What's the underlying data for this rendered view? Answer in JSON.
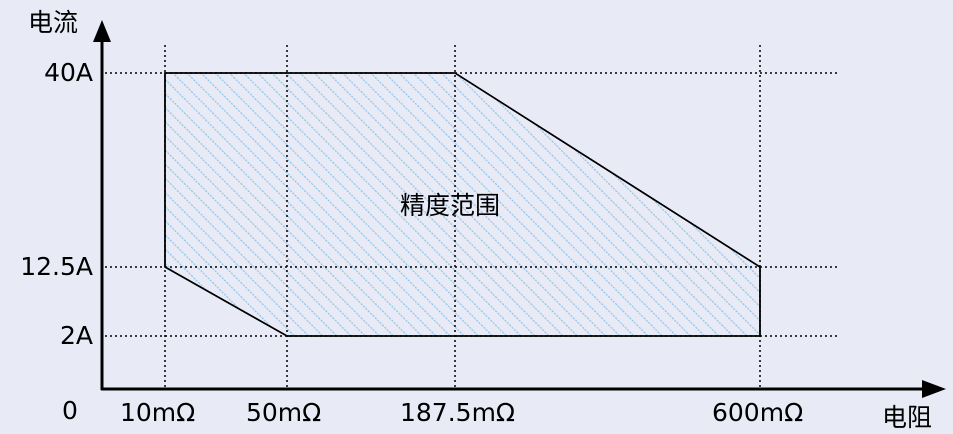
{
  "axes": {
    "y_label": "电流",
    "x_label": "电阻",
    "origin": "0",
    "y_ticks": [
      "40A",
      "12.5A",
      "2A"
    ],
    "x_ticks": [
      "10mΩ",
      "50mΩ",
      "187.5mΩ",
      "600mΩ"
    ]
  },
  "region": {
    "label": "精度范围",
    "hatch_color": "#8fc3e6",
    "outline_color": "#000000"
  },
  "chart_data": {
    "type": "area",
    "x_ticks": [
      "10mΩ",
      "50mΩ",
      "187.5mΩ",
      "600mΩ"
    ],
    "y_ticks": [
      "40A",
      "12.5A",
      "2A"
    ],
    "polygon": [
      {
        "x": "10mΩ",
        "y": "40A"
      },
      {
        "x": "187.5mΩ",
        "y": "40A"
      },
      {
        "x": "600mΩ",
        "y": "12.5A"
      },
      {
        "x": "600mΩ",
        "y": "2A"
      },
      {
        "x": "50mΩ",
        "y": "2A"
      },
      {
        "x": "10mΩ",
        "y": "12.5A"
      }
    ],
    "region_label": "精度范围",
    "grid": "dotted"
  }
}
